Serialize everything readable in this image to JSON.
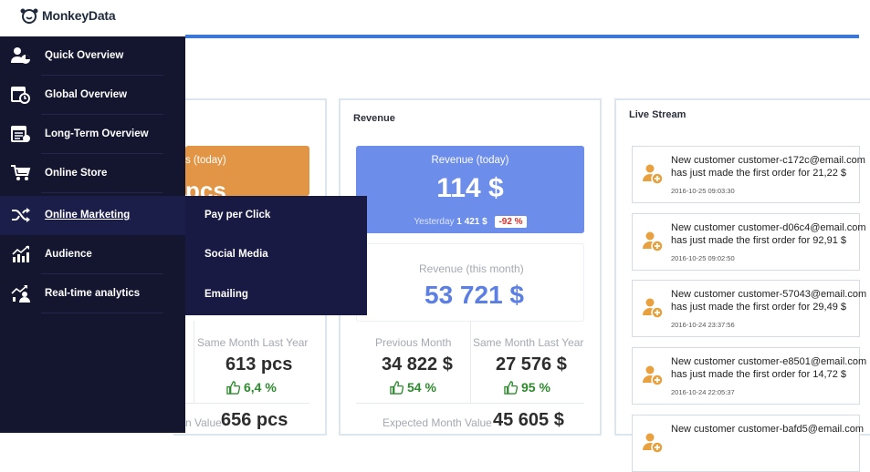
{
  "app": {
    "logo_text": "MonkeyData"
  },
  "sidebar": {
    "items": [
      {
        "label": "Quick Overview",
        "icon": "user-chart-icon"
      },
      {
        "label": "Global Overview",
        "icon": "calendar-clock-icon"
      },
      {
        "label": "Long-Term Overview",
        "icon": "calendar-list-icon"
      },
      {
        "label": "Online Store",
        "icon": "cart-icon"
      },
      {
        "label": "Online Marketing",
        "icon": "shuffle-icon",
        "active": true
      },
      {
        "label": "Audience",
        "icon": "bar-trend-icon"
      },
      {
        "label": "Real-time analytics",
        "icon": "user-trend-icon"
      }
    ],
    "submenu": [
      "Pay per Click",
      "Social Media",
      "Emailing"
    ]
  },
  "orders_panel": {
    "tile_label": "s (today)",
    "tile_value": "pcs",
    "same_month_label": "Same Month Last Year",
    "same_month_value": "613 pcs",
    "same_month_trend": "6,4 %",
    "expected_label": "n Value",
    "expected_value": "656 pcs"
  },
  "revenue_panel": {
    "title": "Revenue",
    "today_label": "Revenue (today)",
    "today_value": "114 $",
    "yesterday_label": "Yesterday",
    "yesterday_value": "1 421 $",
    "yesterday_change": "-92 %",
    "month_label": "Revenue (this month)",
    "month_value": "53 721 $",
    "prev_month_label": "Previous Month",
    "prev_month_value": "34 822 $",
    "prev_month_trend": "54 %",
    "same_month_label": "Same Month Last Year",
    "same_month_value": "27 576 $",
    "same_month_trend": "95 %",
    "expected_label": "Expected Month Value",
    "expected_value": "45 605 $"
  },
  "live_stream": {
    "title": "Live Stream",
    "items": [
      {
        "line1": "New customer customer-c172c@email.com",
        "line2": "has just made the first order for 21,22 $",
        "time": "2016-10-25 09:03:30"
      },
      {
        "line1": "New customer customer-d06c4@email.com",
        "line2": "has just made the first order for 92,91 $",
        "time": "2016-10-25 09:02:50"
      },
      {
        "line1": "New customer customer-57043@email.com",
        "line2": "has just made the first order for 29,49 $",
        "time": "2016-10-24 23:37:56"
      },
      {
        "line1": "New customer customer-e8501@email.com",
        "line2": "has just made the first order for 14,72 $",
        "time": "2016-10-24 22:05:37"
      },
      {
        "line1": "New customer customer-bafd5@email.com",
        "line2": "",
        "time": ""
      }
    ]
  },
  "colors": {
    "sidebar": "#14152f",
    "accent_blue": "#3c78d8",
    "orange_tile": "#e19545",
    "blue_tile": "#6c8de9",
    "trend_green": "#2e8a2e",
    "badge_red": "#d9312b"
  }
}
